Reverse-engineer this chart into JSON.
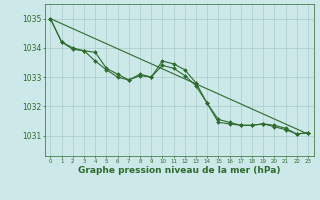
{
  "background_color": "#cce8e8",
  "grid_color": "#aacccc",
  "line_color": "#2d6b2d",
  "marker_color": "#2d6b2d",
  "xlabel": "Graphe pression niveau de la mer (hPa)",
  "xlabel_fontsize": 6.5,
  "ylabel_ticks": [
    1031,
    1032,
    1033,
    1034,
    1035
  ],
  "ylabel_fontsize": 5.5,
  "xlim": [
    -0.5,
    23.5
  ],
  "ylim": [
    1030.3,
    1035.5
  ],
  "hours": [
    0,
    1,
    2,
    3,
    4,
    5,
    6,
    7,
    8,
    9,
    10,
    11,
    12,
    13,
    14,
    15,
    16,
    17,
    18,
    19,
    20,
    21,
    22,
    23
  ],
  "series1": [
    1035.0,
    1034.2,
    1034.0,
    1033.9,
    1033.85,
    1033.3,
    1033.1,
    1032.9,
    1033.1,
    1033.0,
    1033.55,
    1033.45,
    1033.25,
    1032.8,
    1032.1,
    1031.45,
    1031.4,
    1031.35,
    1031.35,
    1031.4,
    1031.35,
    1031.25,
    1031.05,
    1031.1
  ],
  "series_trend": [
    1035.0,
    1031.05
  ],
  "series_trend_x": [
    0,
    23
  ],
  "series3": [
    1035.0,
    1034.2,
    1033.95,
    1033.9,
    1033.55,
    1033.25,
    1033.0,
    1032.9,
    1033.05,
    1033.0,
    1033.4,
    1033.3,
    1033.05,
    1032.7,
    1032.1,
    1031.55,
    1031.45,
    1031.35,
    1031.35,
    1031.4,
    1031.3,
    1031.2,
    1031.05,
    1031.1
  ]
}
